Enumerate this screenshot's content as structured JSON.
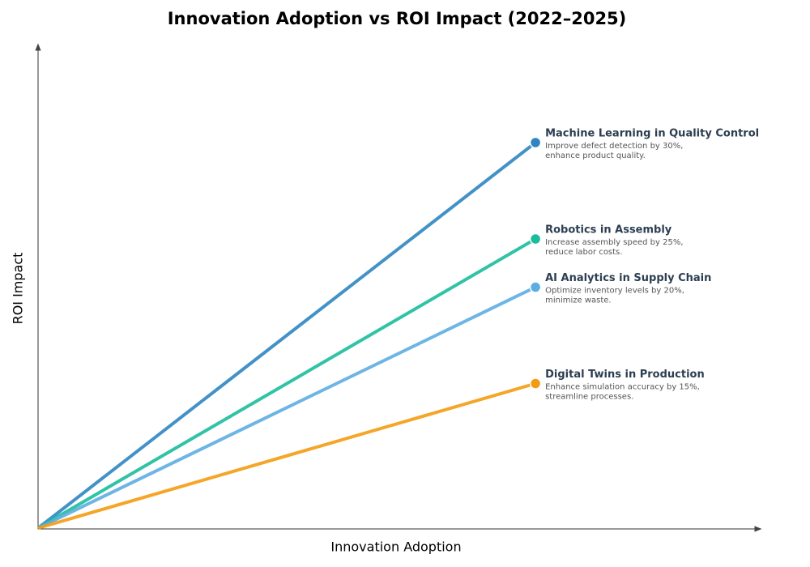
{
  "chart_data": {
    "type": "line",
    "title": "Innovation Adoption vs ROI Impact (2022–2025)",
    "x_label": "Innovation Adoption",
    "y_label": "ROI Impact",
    "xlim": [
      0,
      100
    ],
    "ylim": [
      0,
      100
    ],
    "series": [
      {
        "name": "Machine Learning in Quality Control",
        "color": "#2e86c1",
        "description": [
          "Improve defect detection by 30%,",
          "enhance product quality."
        ],
        "x": [
          0,
          69
        ],
        "values": [
          0,
          80
        ]
      },
      {
        "name": "Robotics in Assembly",
        "color": "#1abc9c",
        "description": [
          "Increase assembly speed by 25%,",
          "reduce labor costs."
        ],
        "x": [
          0,
          69
        ],
        "values": [
          0,
          60
        ]
      },
      {
        "name": "AI Analytics in Supply Chain",
        "color": "#5dade2",
        "description": [
          "Optimize inventory levels by 20%,",
          "minimize waste."
        ],
        "x": [
          0,
          69
        ],
        "values": [
          0,
          50
        ]
      },
      {
        "name": "Digital Twins in Production",
        "color": "#f39c12",
        "description": [
          "Enhance simulation accuracy by 15%,",
          "streamline processes."
        ],
        "x": [
          0,
          69
        ],
        "values": [
          0,
          30
        ]
      }
    ]
  }
}
